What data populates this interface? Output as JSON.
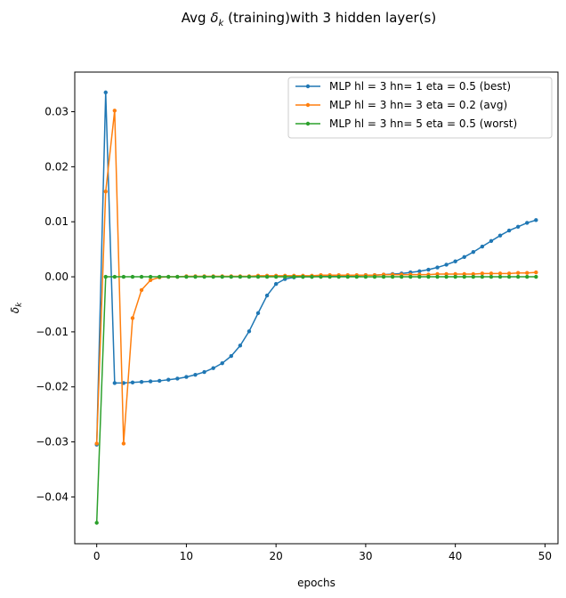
{
  "chart_data": {
    "type": "line",
    "title": "Avg δk (training)with 3 hidden layer(s)",
    "title_parts": {
      "prefix": "Avg ",
      "symbol": "δ",
      "subscript": "k",
      "suffix": " (training)with 3 hidden layer(s)"
    },
    "xlabel": "epochs",
    "ylabel": {
      "symbol": "δ",
      "subscript": "k"
    },
    "xlim": [
      -2.45,
      51.45
    ],
    "ylim": [
      -0.0485,
      0.0372
    ],
    "xticks": [
      0,
      10,
      20,
      30,
      40,
      50
    ],
    "yticks": [
      -0.04,
      -0.03,
      -0.02,
      -0.01,
      0.0,
      0.01,
      0.02,
      0.03
    ],
    "ytick_labels": [
      "−0.04",
      "−0.03",
      "−0.02",
      "−0.01",
      "0.00",
      "0.01",
      "0.02",
      "0.03"
    ],
    "xtick_labels": [
      "0",
      "10",
      "20",
      "30",
      "40",
      "50"
    ],
    "grid": false,
    "legend_position": "top-right",
    "x": [
      0,
      1,
      2,
      3,
      4,
      5,
      6,
      7,
      8,
      9,
      10,
      11,
      12,
      13,
      14,
      15,
      16,
      17,
      18,
      19,
      20,
      21,
      22,
      23,
      24,
      25,
      26,
      27,
      28,
      29,
      30,
      31,
      32,
      33,
      34,
      35,
      36,
      37,
      38,
      39,
      40,
      41,
      42,
      43,
      44,
      45,
      46,
      47,
      48,
      49
    ],
    "series": [
      {
        "name": "MLP hl = 3 hn= 1 eta = 0.5 (best)",
        "color": "#1f77b4",
        "values": [
          -0.0305,
          0.0335,
          -0.0193,
          -0.0193,
          -0.0192,
          -0.0191,
          -0.019,
          -0.0189,
          -0.0187,
          -0.0185,
          -0.0182,
          -0.0178,
          -0.0173,
          -0.0166,
          -0.0157,
          -0.0144,
          -0.0125,
          -0.0099,
          -0.0066,
          -0.0034,
          -0.0013,
          -0.0004,
          -0.0001,
          0.0,
          0.0,
          0.0001,
          0.0001,
          0.0001,
          0.0002,
          0.0002,
          0.0003,
          0.0003,
          0.0004,
          0.0005,
          0.0006,
          0.0008,
          0.001,
          0.0013,
          0.0017,
          0.0022,
          0.0028,
          0.0036,
          0.0045,
          0.0055,
          0.0065,
          0.0075,
          0.0084,
          0.0091,
          0.0098,
          0.0103
        ]
      },
      {
        "name": "MLP hl = 3 hn= 3 eta = 0.2 (avg)",
        "color": "#ff7f0e",
        "values": [
          -0.0303,
          0.0155,
          0.0302,
          -0.0303,
          -0.0075,
          -0.0024,
          -0.0006,
          -0.0001,
          0.0,
          0.0,
          0.0001,
          0.0001,
          0.0001,
          0.0001,
          0.0001,
          0.0001,
          0.0001,
          0.0001,
          0.0002,
          0.0002,
          0.0002,
          0.0002,
          0.0002,
          0.0002,
          0.0002,
          0.0003,
          0.0003,
          0.0003,
          0.0003,
          0.0003,
          0.0003,
          0.0003,
          0.0004,
          0.0004,
          0.0004,
          0.0004,
          0.0004,
          0.0004,
          0.0005,
          0.0005,
          0.0005,
          0.0005,
          0.0005,
          0.0006,
          0.0006,
          0.0006,
          0.0006,
          0.0007,
          0.0007,
          0.0008
        ]
      },
      {
        "name": "MLP hl = 3 hn= 5 eta = 0.5 (worst)",
        "color": "#2ca02c",
        "values": [
          -0.0447,
          0.0,
          0.0,
          0.0,
          0.0,
          0.0,
          0.0,
          0.0,
          0.0,
          0.0,
          0.0,
          0.0,
          0.0,
          0.0,
          0.0,
          0.0,
          0.0,
          0.0,
          0.0,
          0.0,
          0.0,
          0.0,
          0.0,
          0.0,
          0.0,
          0.0,
          0.0,
          0.0,
          0.0,
          0.0,
          0.0,
          0.0,
          0.0,
          0.0,
          0.0,
          0.0,
          0.0,
          0.0,
          0.0,
          0.0,
          0.0,
          0.0,
          0.0,
          0.0,
          0.0,
          0.0,
          0.0,
          0.0,
          0.0,
          0.0
        ]
      }
    ]
  }
}
